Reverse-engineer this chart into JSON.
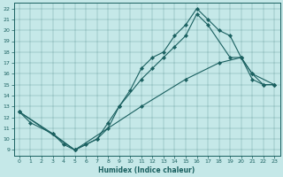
{
  "xlabel": "Humidex (Indice chaleur)",
  "bg_color": "#c5e8e8",
  "line_color": "#1a6060",
  "xlim": [
    -0.5,
    23.5
  ],
  "ylim": [
    8.5,
    22.5
  ],
  "xticks": [
    0,
    1,
    2,
    3,
    4,
    5,
    6,
    7,
    8,
    9,
    10,
    11,
    12,
    13,
    14,
    15,
    16,
    17,
    18,
    19,
    20,
    21,
    22,
    23
  ],
  "yticks": [
    9,
    10,
    11,
    12,
    13,
    14,
    15,
    16,
    17,
    18,
    19,
    20,
    21,
    22
  ],
  "line1": {
    "x": [
      0,
      1,
      3,
      4,
      5,
      6,
      7,
      8,
      9,
      10,
      11,
      12,
      13,
      14,
      15,
      16,
      17,
      18,
      19,
      20,
      21,
      22,
      23
    ],
    "y": [
      12.5,
      11.5,
      10.5,
      9.5,
      9.0,
      9.5,
      10.0,
      11.5,
      13.0,
      14.5,
      16.5,
      17.5,
      18.0,
      19.5,
      20.5,
      22.0,
      21.0,
      20.0,
      19.5,
      17.5,
      16.0,
      15.0,
      15.0
    ]
  },
  "line2": {
    "x": [
      0,
      3,
      5,
      7,
      8,
      9,
      11,
      12,
      13,
      14,
      15,
      16,
      17,
      19,
      20,
      21,
      22,
      23
    ],
    "y": [
      12.5,
      10.5,
      9.0,
      10.0,
      11.0,
      13.0,
      15.5,
      16.5,
      17.5,
      18.5,
      19.5,
      21.5,
      20.5,
      17.5,
      17.5,
      15.5,
      15.0,
      15.0
    ]
  },
  "line3": {
    "x": [
      0,
      5,
      11,
      15,
      18,
      20,
      21,
      23
    ],
    "y": [
      12.5,
      9.0,
      13.0,
      15.5,
      17.0,
      17.5,
      16.0,
      15.0
    ]
  }
}
